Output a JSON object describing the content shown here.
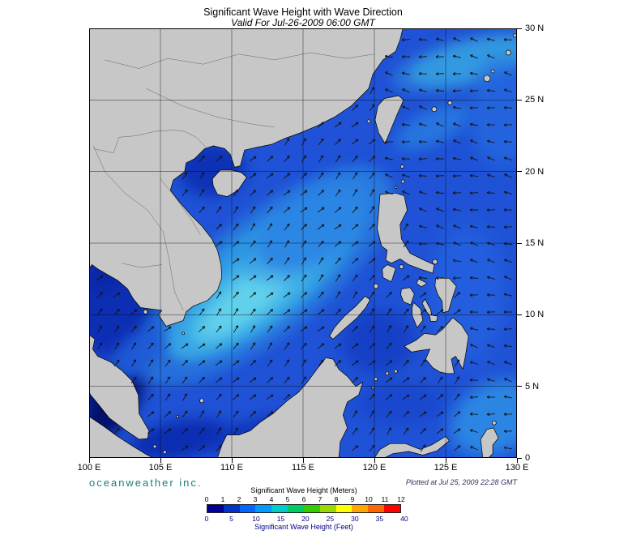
{
  "header": {
    "title": "Significant Wave Height with Wave Direction",
    "subtitle": "Valid For Jul-26-2009 06:00 GMT"
  },
  "map": {
    "x_axis_labels": [
      "100 E",
      "105 E",
      "110 E",
      "115 E",
      "120 E",
      "125 E",
      "130 E"
    ],
    "y_axis_labels": [
      "30 N",
      "25 N",
      "20 N",
      "15 N",
      "10 N",
      "5 N",
      "0"
    ],
    "grid_interval_degrees": 5,
    "colors": {
      "land": "#C7C7C7",
      "coastline": "#000000",
      "grid": "#000000",
      "arrow": "#141414",
      "sea_base": "#1F52D6",
      "sea_calm": "#0B2CB4",
      "sea_dark": "#000566",
      "sea_high": "#49BCE8"
    }
  },
  "footer": {
    "branding": "oceanweather inc.",
    "branding_color": "#1E7B7B",
    "plotted": "Plotted at Jul 25, 2009 22:28 GMT"
  },
  "legend": {
    "meters_title": "Significant Wave Height (Meters)",
    "feet_title": "Significant Wave Height (Feet)",
    "meters_ticks": [
      "0",
      "1",
      "2",
      "3",
      "4",
      "5",
      "6",
      "7",
      "8",
      "9",
      "10",
      "11",
      "12"
    ],
    "feet_ticks": [
      "0",
      "5",
      "10",
      "15",
      "20",
      "25",
      "30",
      "35",
      "40"
    ],
    "colors": [
      "#000099",
      "#0033CC",
      "#0066FF",
      "#0099FF",
      "#00CCCC",
      "#00CC66",
      "#33CC00",
      "#99D900",
      "#FFFF00",
      "#FFA500",
      "#FF6600",
      "#FF0000"
    ],
    "feet_color": "#00008B"
  }
}
